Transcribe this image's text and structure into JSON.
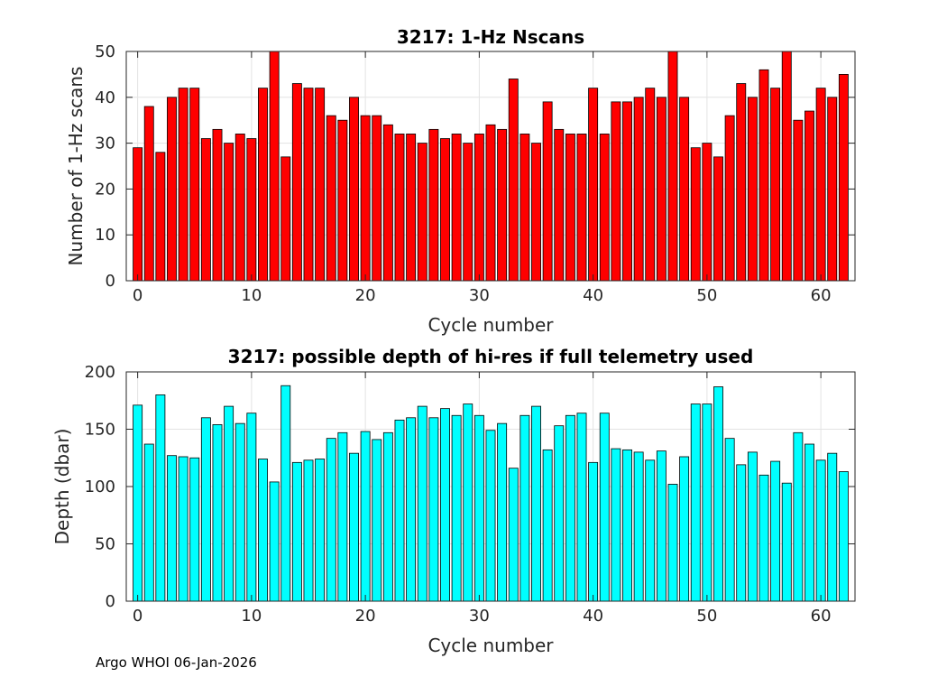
{
  "chart_data": [
    {
      "type": "bar",
      "title": "3217: 1-Hz Nscans",
      "xlabel": "Cycle number",
      "ylabel": "Number of 1-Hz scans",
      "xlim": [
        -1,
        63
      ],
      "ylim": [
        0,
        50
      ],
      "xticks": [
        0,
        10,
        20,
        30,
        40,
        50,
        60
      ],
      "yticks": [
        0,
        10,
        20,
        30,
        40,
        50
      ],
      "grid": true,
      "bar_color": "#ff0000",
      "edge_color": "#000000",
      "x": [
        0,
        1,
        2,
        3,
        4,
        5,
        6,
        7,
        8,
        9,
        10,
        11,
        12,
        13,
        14,
        15,
        16,
        17,
        18,
        19,
        20,
        21,
        22,
        23,
        24,
        25,
        26,
        27,
        28,
        29,
        30,
        31,
        32,
        33,
        34,
        35,
        36,
        37,
        38,
        39,
        40,
        41,
        42,
        43,
        44,
        45,
        46,
        47,
        48,
        49,
        50,
        51,
        52,
        53,
        54,
        55,
        56,
        57,
        58,
        59,
        60,
        61,
        62
      ],
      "values": [
        29,
        38,
        28,
        40,
        42,
        42,
        31,
        33,
        30,
        32,
        31,
        42,
        50,
        27,
        43,
        42,
        42,
        36,
        35,
        40,
        36,
        36,
        34,
        32,
        32,
        30,
        33,
        31,
        32,
        30,
        32,
        34,
        33,
        44,
        32,
        30,
        39,
        33,
        32,
        32,
        42,
        32,
        39,
        39,
        40,
        42,
        40,
        50,
        40,
        29,
        30,
        27,
        36,
        43,
        40,
        46,
        42,
        50,
        35,
        37,
        42,
        40,
        45
      ]
    },
    {
      "type": "bar",
      "title": "3217: possible depth of hi-res if full telemetry used",
      "xlabel": "Cycle number",
      "ylabel": "Depth (dbar)",
      "xlim": [
        -1,
        63
      ],
      "ylim": [
        0,
        200
      ],
      "xticks": [
        0,
        10,
        20,
        30,
        40,
        50,
        60
      ],
      "yticks": [
        0,
        50,
        100,
        150,
        200
      ],
      "grid": true,
      "bar_color": "#00ffff",
      "edge_color": "#000000",
      "x": [
        0,
        1,
        2,
        3,
        4,
        5,
        6,
        7,
        8,
        9,
        10,
        11,
        12,
        13,
        14,
        15,
        16,
        17,
        18,
        19,
        20,
        21,
        22,
        23,
        24,
        25,
        26,
        27,
        28,
        29,
        30,
        31,
        32,
        33,
        34,
        35,
        36,
        37,
        38,
        39,
        40,
        41,
        42,
        43,
        44,
        45,
        46,
        47,
        48,
        49,
        50,
        51,
        52,
        53,
        54,
        55,
        56,
        57,
        58,
        59,
        60,
        61,
        62
      ],
      "values": [
        171,
        137,
        180,
        127,
        126,
        125,
        160,
        154,
        170,
        155,
        164,
        124,
        104,
        188,
        121,
        123,
        124,
        142,
        147,
        129,
        148,
        141,
        147,
        158,
        160,
        170,
        160,
        168,
        162,
        172,
        162,
        149,
        155,
        116,
        162,
        170,
        132,
        153,
        162,
        164,
        121,
        164,
        133,
        132,
        130,
        123,
        131,
        102,
        126,
        172,
        172,
        187,
        142,
        119,
        130,
        110,
        122,
        103,
        147,
        137,
        123,
        129,
        113
      ]
    }
  ],
  "footer": {
    "text": "Argo WHOI 06-Jan-2026"
  }
}
